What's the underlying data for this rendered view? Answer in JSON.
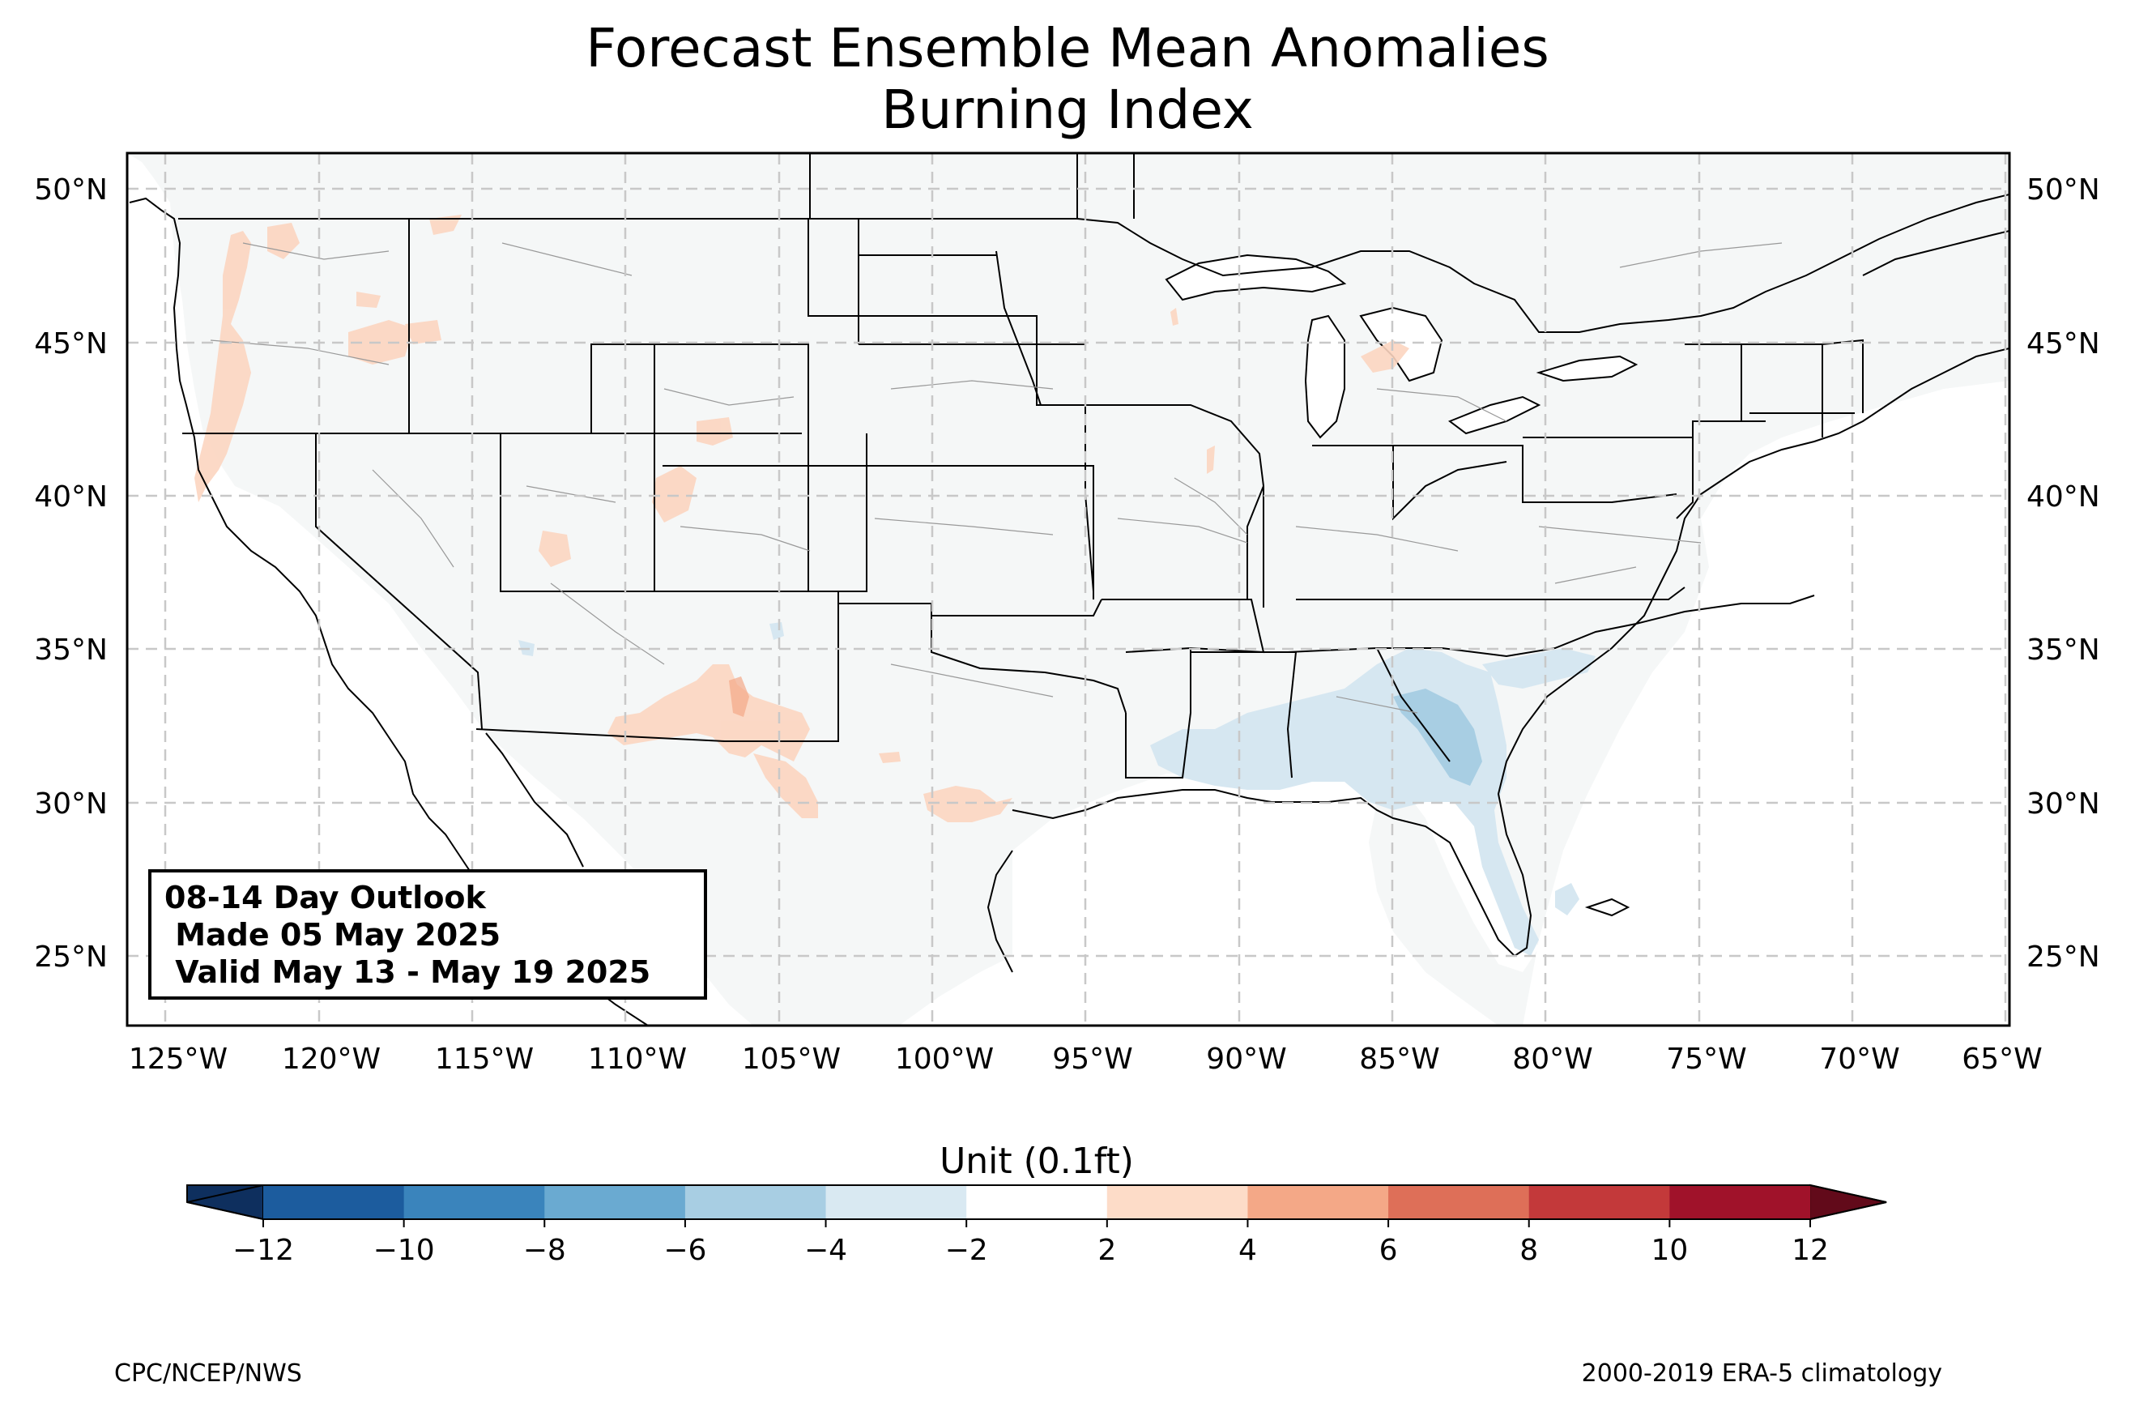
{
  "title": {
    "line1": "Forecast Ensemble Mean Anomalies",
    "line2": "Burning Index"
  },
  "map": {
    "lon_range": [
      -126.3,
      -65
    ],
    "lat_range": [
      22.7,
      51.2
    ],
    "lon_ticks": [
      "125°W",
      "120°W",
      "115°W",
      "110°W",
      "105°W",
      "100°W",
      "95°W",
      "90°W",
      "85°W",
      "80°W",
      "75°W",
      "70°W",
      "65°W"
    ],
    "lat_ticks": [
      "50°N",
      "45°N",
      "40°N",
      "35°N",
      "30°N",
      "25°N"
    ],
    "gridlines": true,
    "background_color": "#f5f7f7",
    "anomaly_regions": [
      {
        "area": "Washington / Oregon Cascades",
        "level": "2 to 4"
      },
      {
        "area": "Northern California coast",
        "level": "2 to 4"
      },
      {
        "area": "Western Colorado",
        "level": "2 to 4"
      },
      {
        "area": "Southern New Mexico",
        "level": "2 to 6"
      },
      {
        "area": "West / South Texas",
        "level": "2 to 4"
      },
      {
        "area": "Northern Michigan",
        "level": "2 to 4"
      },
      {
        "area": "Gulf Coast: Louisiana to Georgia",
        "level": "-2 to -4"
      },
      {
        "area": "Southeast Georgia / South Carolina",
        "level": "-4 to -6"
      },
      {
        "area": "Florida peninsula",
        "level": "-2 to -4"
      }
    ]
  },
  "info_box": {
    "line1": "08-14 Day Outlook",
    "line2": " Made 05 May 2025",
    "line3": " Valid May 13 - May 19 2025"
  },
  "colorbar": {
    "title": "Unit (0.1ft)",
    "ticks": [
      "−12",
      "−10",
      "−8",
      "−6",
      "−4",
      "−2",
      "2",
      "4",
      "6",
      "8",
      "10",
      "12"
    ],
    "colors": [
      "#1c5c9e",
      "#3a84bc",
      "#6aaad1",
      "#a8cee3",
      "#d9e9f2",
      "#ffffff",
      "#fddcc8",
      "#f4a887",
      "#de6f58",
      "#c3393a",
      "#a0122a"
    ],
    "under_color": "#0e2f5e",
    "over_color": "#620a1a"
  },
  "footer": {
    "left": "CPC/NCEP/NWS",
    "right": "2000-2019 ERA-5 climatology"
  }
}
